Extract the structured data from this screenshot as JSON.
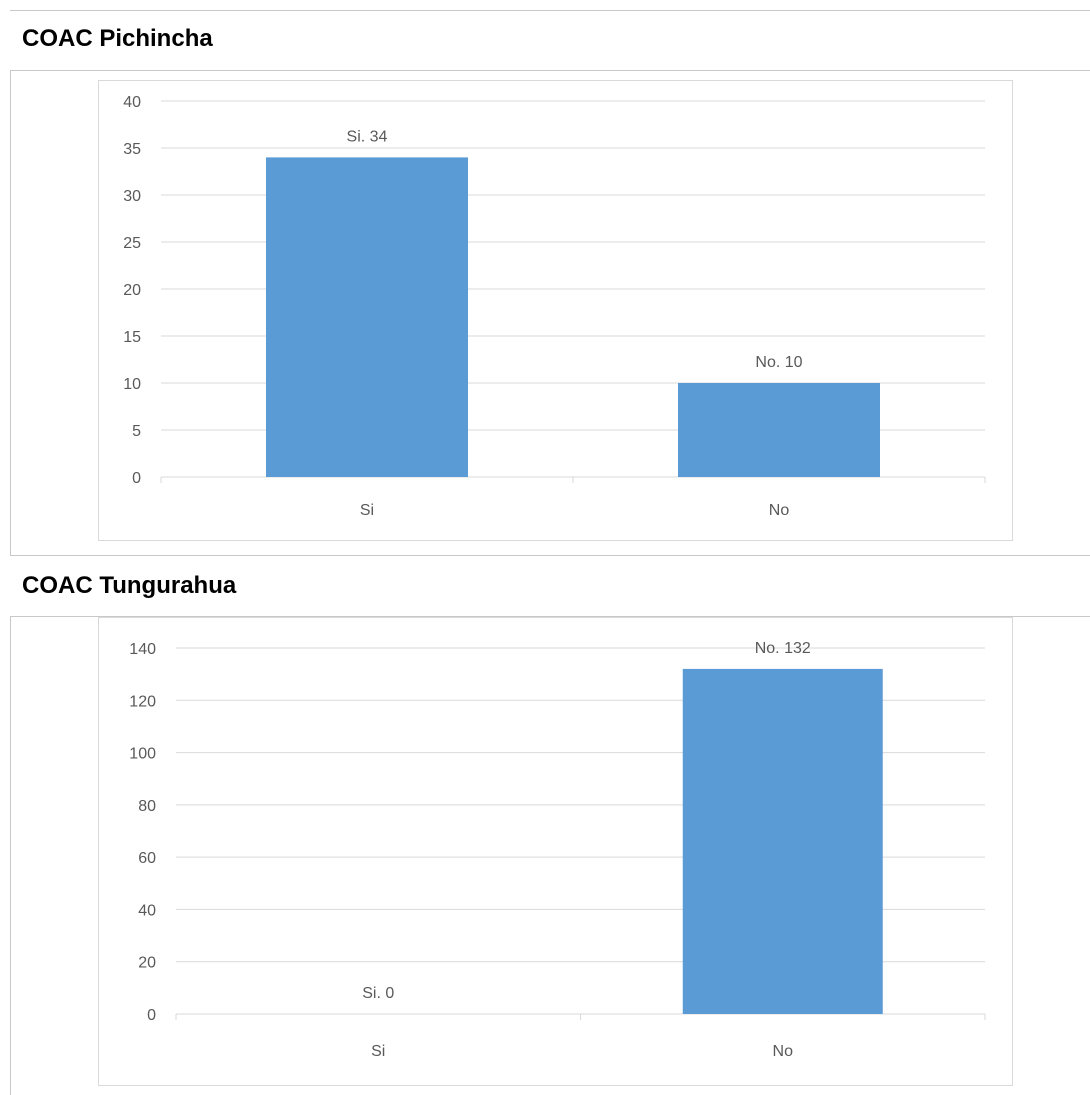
{
  "sections": [
    {
      "title": "COAC Pichincha"
    },
    {
      "title": "COAC Tungurahua"
    }
  ],
  "chart_data": [
    {
      "type": "bar",
      "title": "",
      "categories": [
        "Si",
        "No"
      ],
      "values": [
        34,
        10
      ],
      "data_labels": [
        "Si. 34",
        "No. 10"
      ],
      "ylim": [
        0,
        40
      ],
      "yticks": [
        0,
        5,
        10,
        15,
        20,
        25,
        30,
        35,
        40
      ],
      "xlabel": "",
      "ylabel": "",
      "grid": true,
      "bar_color": "#5b9bd5"
    },
    {
      "type": "bar",
      "title": "",
      "categories": [
        "Si",
        "No"
      ],
      "values": [
        0,
        132
      ],
      "data_labels": [
        "Si. 0",
        "No. 132"
      ],
      "ylim": [
        0,
        140
      ],
      "yticks": [
        0,
        20,
        40,
        60,
        80,
        100,
        120,
        140
      ],
      "xlabel": "",
      "ylabel": "",
      "grid": true,
      "bar_color": "#5b9bd5"
    }
  ]
}
